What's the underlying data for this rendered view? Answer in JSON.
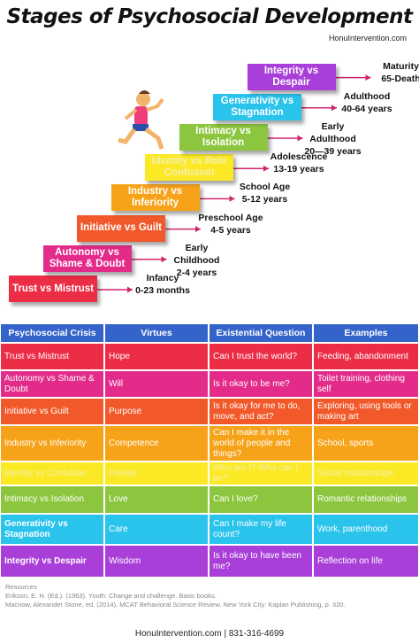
{
  "header": {
    "title": "Stages of Psychosocial Development",
    "site": "HonuIntervention.com"
  },
  "stages": [
    {
      "label": "Trust vs Mistrust",
      "age_label": "Infancy",
      "age_range": "0-23 months"
    },
    {
      "label": "Autonomy vs Shame & Doubt",
      "age_label": "Early Childhood",
      "age_range": "2-4 years"
    },
    {
      "label": "Initiative vs Guilt",
      "age_label": "Preschool Age",
      "age_range": "4-5 years"
    },
    {
      "label": "Industry vs Inferiority",
      "age_label": "School Age",
      "age_range": "5-12 years"
    },
    {
      "label": "Identity vs Role Confusion",
      "age_label": "Adolescence",
      "age_range": "13-19 years"
    },
    {
      "label": "Intimacy vs Isolation",
      "age_label": "Early Adulthood",
      "age_range": "20—39 years"
    },
    {
      "label": "Generativity vs Stagnation",
      "age_label": "Adulthood",
      "age_range": "40-64 years"
    },
    {
      "label": "Integrity vs Despair",
      "age_label": "Maturity",
      "age_range": "65-Death"
    }
  ],
  "table": {
    "headers": [
      "Psychosocial Crisis",
      "Virtues",
      "Existential Question",
      "Examples"
    ],
    "rows": [
      [
        "Trust vs Mistrust",
        "Hope",
        "Can I trust the world?",
        "Feeding, abandonment"
      ],
      [
        "Autonomy vs Shame & Doubt",
        "Will",
        "Is it okay to be me?",
        "Toilet training, clothing self"
      ],
      [
        "Initiative vs Guilt",
        "Purpose",
        "Is it okay for me to do, move, and act?",
        "Exploring, using tools or making art"
      ],
      [
        "Industry vs Inferiority",
        "Competence",
        "Can I make it in the world of people and things?",
        "School, sports"
      ],
      [
        "Identity vs Confusion",
        "Fidelity",
        "Who am I? Who can I be?",
        "Social relationships"
      ],
      [
        "Intimacy vs Isolation",
        "Love",
        "Can I love?",
        "Romantic relationships"
      ],
      [
        "Generativity vs Stagnation",
        "Care",
        "Can I make my life count?",
        "Work, parenthood"
      ],
      [
        "Integrity vs Despair",
        "Wisdom",
        "Is it okay to have been me?",
        "Reflection on life"
      ]
    ]
  },
  "resources": {
    "title": "Resources",
    "items": [
      "Erikson, E. H. (Ed.). (1963). Youth: Change and challenge. Basic books.",
      "Macnow, Alexander Stone, ed. (2014). MCAT Behavioral Science Review. New York City: Kaplan Publishing, p. 320."
    ]
  },
  "footer": "HonuIntervention.com | 831-316-4699"
}
